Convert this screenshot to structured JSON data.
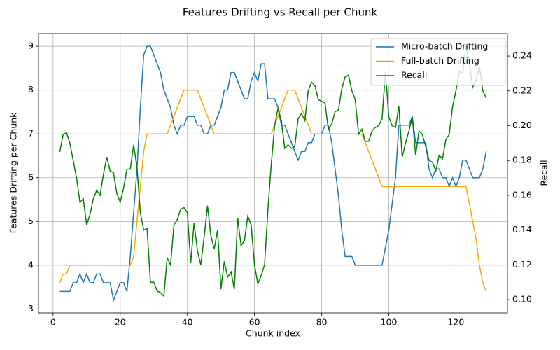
{
  "chart_data": {
    "type": "line",
    "title": "Features Drifting vs Recall per Chunk",
    "xlabel": "Chunk index",
    "ylabel": "Features Drifting per Chunk",
    "y2label": "Recall",
    "x": [
      2,
      3,
      4,
      5,
      6,
      7,
      8,
      9,
      10,
      11,
      12,
      13,
      14,
      15,
      16,
      17,
      18,
      19,
      20,
      21,
      22,
      23,
      24,
      25,
      26,
      27,
      28,
      29,
      30,
      31,
      32,
      33,
      34,
      35,
      36,
      37,
      38,
      39,
      40,
      41,
      42,
      43,
      44,
      45,
      46,
      47,
      48,
      49,
      50,
      51,
      52,
      53,
      54,
      55,
      56,
      57,
      58,
      59,
      60,
      61,
      62,
      63,
      64,
      65,
      66,
      67,
      68,
      69,
      70,
      71,
      72,
      73,
      74,
      75,
      76,
      77,
      78,
      79,
      80,
      81,
      82,
      83,
      84,
      85,
      86,
      87,
      88,
      89,
      90,
      91,
      92,
      93,
      94,
      95,
      96,
      97,
      98,
      99,
      100,
      101,
      102,
      103,
      104,
      105,
      106,
      107,
      108,
      109,
      110,
      111,
      112,
      113,
      114,
      115,
      116,
      117,
      118,
      119,
      120,
      121,
      122,
      123,
      124,
      125,
      126,
      127,
      128,
      129
    ],
    "series": [
      {
        "name": "Micro-batch Drifting",
        "color": "#1f77b4",
        "axis": "y",
        "values": [
          3.4,
          3.4,
          3.4,
          3.4,
          3.6,
          3.6,
          3.8,
          3.6,
          3.8,
          3.6,
          3.6,
          3.8,
          3.8,
          3.6,
          3.6,
          3.6,
          3.2,
          3.4,
          3.6,
          3.6,
          3.4,
          4.2,
          5.2,
          6.2,
          7.6,
          8.8,
          9.0,
          9.0,
          8.8,
          8.6,
          8.4,
          8.0,
          7.8,
          7.6,
          7.2,
          7.0,
          7.2,
          7.2,
          7.4,
          7.4,
          7.4,
          7.2,
          7.2,
          7.0,
          7.0,
          7.2,
          7.2,
          7.4,
          7.6,
          8.0,
          8.0,
          8.4,
          8.4,
          8.2,
          8.0,
          7.8,
          7.8,
          8.2,
          8.4,
          8.2,
          8.6,
          8.6,
          7.8,
          7.8,
          7.8,
          7.6,
          7.2,
          7.2,
          7.0,
          6.8,
          6.6,
          6.4,
          6.6,
          6.6,
          6.8,
          6.8,
          7.0,
          7.0,
          7.0,
          7.2,
          7.2,
          6.8,
          6.2,
          5.6,
          4.8,
          4.2,
          4.2,
          4.2,
          4.0,
          4.0,
          4.0,
          4.0,
          4.0,
          4.0,
          4.0,
          4.0,
          4.0,
          4.4,
          4.8,
          5.4,
          6.0,
          7.2,
          7.2,
          7.2,
          7.2,
          7.4,
          6.8,
          6.8,
          6.8,
          6.8,
          6.2,
          6.0,
          6.2,
          6.2,
          6.0,
          6.0,
          5.8,
          6.0,
          5.8,
          6.0,
          6.4,
          6.4,
          6.2,
          6.0,
          6.0,
          6.0,
          6.2,
          6.6
        ]
      },
      {
        "name": "Full-batch Drifting",
        "color": "#ffa500",
        "axis": "y",
        "values": [
          3.6,
          3.8,
          3.8,
          4.0,
          4.0,
          4.0,
          4.0,
          4.0,
          4.0,
          4.0,
          4.0,
          4.0,
          4.0,
          4.0,
          4.0,
          4.0,
          4.0,
          4.0,
          4.0,
          4.0,
          4.0,
          4.0,
          4.2,
          5.0,
          5.8,
          6.6,
          7.0,
          7.0,
          7.0,
          7.0,
          7.0,
          7.0,
          7.0,
          7.2,
          7.4,
          7.6,
          7.8,
          8.0,
          8.0,
          8.0,
          8.0,
          8.0,
          7.8,
          7.6,
          7.4,
          7.2,
          7.0,
          7.0,
          7.0,
          7.0,
          7.0,
          7.0,
          7.0,
          7.0,
          7.0,
          7.0,
          7.0,
          7.0,
          7.0,
          7.0,
          7.0,
          7.0,
          7.0,
          7.0,
          7.2,
          7.4,
          7.6,
          7.8,
          8.0,
          8.0,
          8.0,
          7.8,
          7.6,
          7.4,
          7.2,
          7.0,
          7.0,
          7.0,
          7.0,
          7.0,
          7.0,
          7.0,
          7.0,
          7.0,
          7.0,
          7.0,
          7.0,
          7.0,
          7.0,
          7.0,
          7.0,
          6.8,
          6.6,
          6.4,
          6.2,
          6.0,
          5.8,
          5.8,
          5.8,
          5.8,
          5.8,
          5.8,
          5.8,
          5.8,
          5.8,
          5.8,
          5.8,
          5.8,
          5.8,
          5.8,
          5.8,
          5.8,
          5.8,
          5.8,
          5.8,
          5.8,
          5.8,
          5.8,
          5.8,
          5.8,
          5.8,
          5.8,
          5.4,
          5.0,
          4.6,
          4.0,
          3.6,
          3.4
        ]
      },
      {
        "name": "Recall",
        "color": "#008000",
        "axis": "y2",
        "values": [
          0.185,
          0.195,
          0.196,
          0.19,
          0.18,
          0.17,
          0.156,
          0.158,
          0.143,
          0.149,
          0.158,
          0.163,
          0.16,
          0.172,
          0.182,
          0.174,
          0.173,
          0.161,
          0.156,
          0.164,
          0.175,
          0.175,
          0.189,
          0.176,
          0.15,
          0.14,
          0.141,
          0.11,
          0.11,
          0.105,
          0.104,
          0.102,
          0.124,
          0.12,
          0.143,
          0.146,
          0.152,
          0.153,
          0.15,
          0.121,
          0.144,
          0.128,
          0.12,
          0.136,
          0.154,
          0.137,
          0.129,
          0.14,
          0.106,
          0.122,
          0.113,
          0.116,
          0.106,
          0.147,
          0.131,
          0.134,
          0.148,
          0.143,
          0.12,
          0.109,
          0.114,
          0.12,
          0.152,
          0.178,
          0.2,
          0.21,
          0.203,
          0.187,
          0.189,
          0.187,
          0.188,
          0.204,
          0.207,
          0.203,
          0.22,
          0.225,
          0.223,
          0.215,
          0.214,
          0.213,
          0.198,
          0.201,
          0.208,
          0.209,
          0.221,
          0.228,
          0.229,
          0.22,
          0.215,
          0.195,
          0.198,
          0.191,
          0.191,
          0.197,
          0.199,
          0.2,
          0.204,
          0.231,
          0.205,
          0.2,
          0.199,
          0.211,
          0.182,
          0.19,
          0.197,
          0.205,
          0.183,
          0.197,
          0.195,
          0.188,
          0.18,
          0.179,
          0.174,
          0.183,
          0.181,
          0.192,
          0.195,
          0.211,
          0.22,
          0.231,
          0.23,
          0.246,
          0.236,
          0.222,
          0.226,
          0.234,
          0.22,
          0.216
        ]
      }
    ],
    "xlim": [
      -4.35,
      135.35
    ],
    "xticks": [
      0,
      20,
      40,
      60,
      80,
      100,
      120
    ],
    "ylim": [
      2.91,
      9.29
    ],
    "yticks": [
      3,
      4,
      5,
      6,
      7,
      8,
      9
    ],
    "y2lim": [
      0.0924,
      0.2529
    ],
    "y2ticks": [
      {
        "value": 0.1,
        "label": "0.10"
      },
      0.12,
      0.14,
      0.16,
      0.18,
      {
        "value": 0.2,
        "label": "0.20"
      },
      0.22,
      0.24
    ],
    "grid": true,
    "legend": "upper right"
  }
}
